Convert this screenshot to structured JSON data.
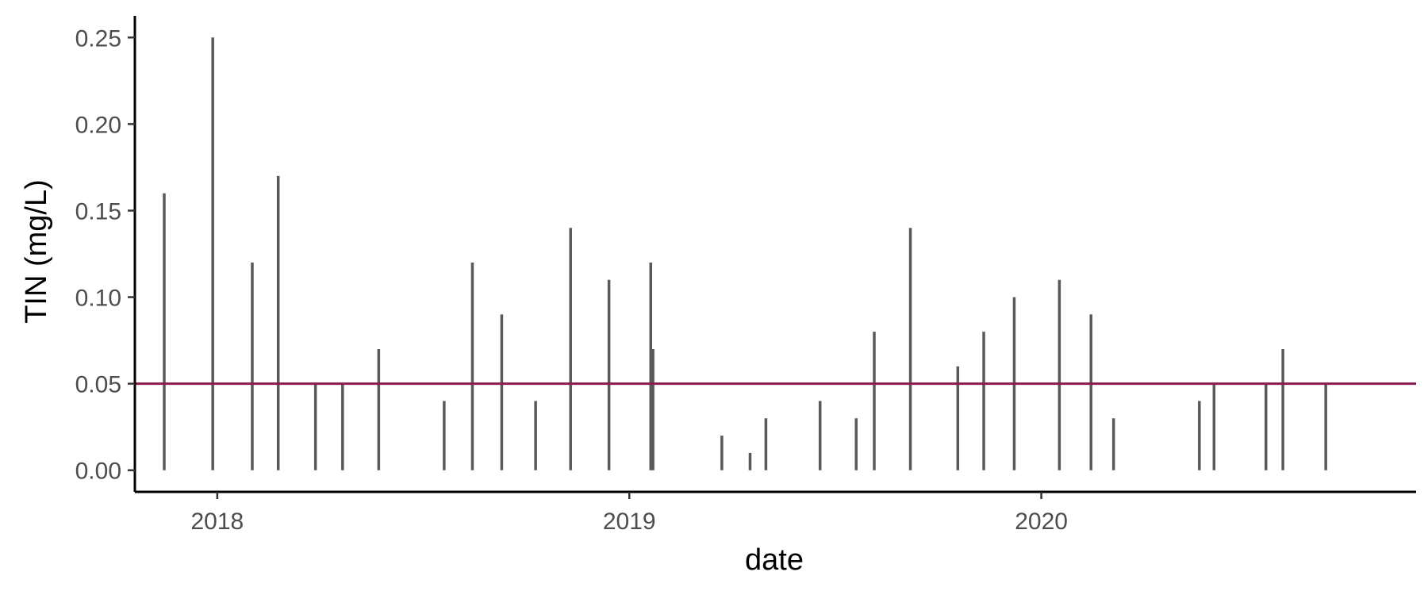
{
  "chart_data": {
    "type": "bar",
    "title": "",
    "xlabel": "date",
    "ylabel": "TIN (mg/L)",
    "x_tick_labels": [
      "2018",
      "2019",
      "2020"
    ],
    "y_tick_labels": [
      "0.00",
      "0.05",
      "0.10",
      "0.15",
      "0.20",
      "0.25"
    ],
    "y_ticks": [
      0,
      0.05,
      0.1,
      0.15,
      0.2,
      0.25
    ],
    "xlim": [
      "2017-10-20",
      "2020-11-28"
    ],
    "ylim": [
      -0.0125,
      0.2625
    ],
    "reference_line": {
      "y": 0.05,
      "color": "#8b1a4f"
    },
    "bar_color": "#595959",
    "grid": false,
    "series": [
      {
        "x": [
          "2017-11-15",
          "2017-12-28",
          "2018-02-01",
          "2018-02-24",
          "2018-03-29",
          "2018-04-22",
          "2018-05-24",
          "2018-07-21",
          "2018-08-15",
          "2018-09-10",
          "2018-10-10",
          "2018-11-10",
          "2018-12-14",
          "2019-01-20",
          "2019-01-22",
          "2019-03-24",
          "2019-04-18",
          "2019-05-02",
          "2019-06-19",
          "2019-07-21",
          "2019-08-06",
          "2019-09-07",
          "2019-10-19",
          "2019-11-11",
          "2019-12-08",
          "2020-01-17",
          "2020-02-14",
          "2020-03-05",
          "2020-05-20",
          "2020-06-02",
          "2020-07-18",
          "2020-08-02",
          "2020-09-09"
        ],
        "values": [
          0.16,
          0.25,
          0.12,
          0.17,
          0.05,
          0.05,
          0.07,
          0.04,
          0.12,
          0.09,
          0.04,
          0.14,
          0.11,
          0.12,
          0.07,
          0.02,
          0.01,
          0.03,
          0.04,
          0.03,
          0.08,
          0.14,
          0.06,
          0.08,
          0.1,
          0.11,
          0.09,
          0.03,
          0.04,
          0.05,
          0.05,
          0.07,
          0.05
        ]
      }
    ]
  }
}
